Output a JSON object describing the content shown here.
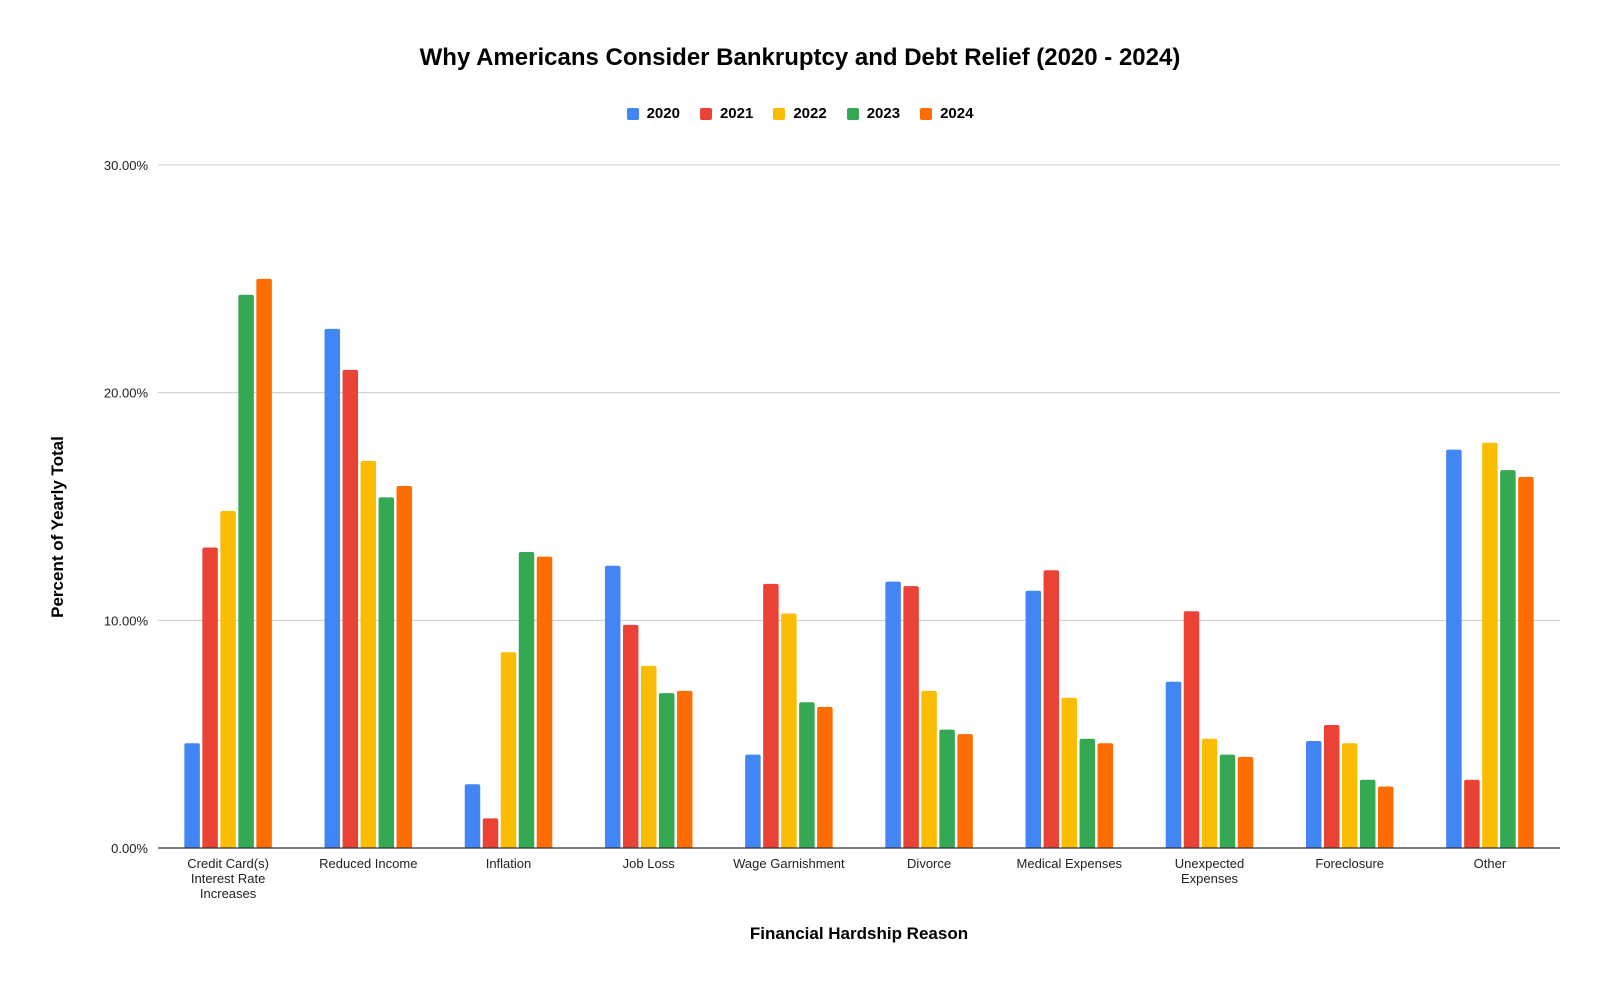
{
  "chart_data": {
    "type": "bar",
    "title": "Why Americans Consider Bankruptcy and Debt Relief (2020 - 2024)",
    "xlabel": "Financial Hardship Reason",
    "ylabel": "Percent of Yearly Total",
    "ylim": [
      0,
      30
    ],
    "yticks": [
      "0.00%",
      "10.00%",
      "20.00%",
      "30.00%"
    ],
    "grid": true,
    "legend_position": "top",
    "categories": [
      "Credit Card(s) Interest Rate Increases",
      "Reduced Income",
      "Inflation",
      "Job Loss",
      "Wage Garnishment",
      "Divorce",
      "Medical Expenses",
      "Unexpected Expenses",
      "Foreclosure",
      "Other"
    ],
    "category_label_lines": [
      [
        "Credit Card(s)",
        "Interest Rate",
        "Increases"
      ],
      [
        "Reduced Income"
      ],
      [
        "Inflation"
      ],
      [
        "Job Loss"
      ],
      [
        "Wage Garnishment"
      ],
      [
        "Divorce"
      ],
      [
        "Medical Expenses"
      ],
      [
        "Unexpected",
        "Expenses"
      ],
      [
        "Foreclosure"
      ],
      [
        "Other"
      ]
    ],
    "series": [
      {
        "name": "2020",
        "color": "#4285F4",
        "values": [
          4.6,
          22.8,
          2.8,
          12.4,
          4.1,
          11.7,
          11.3,
          7.3,
          4.7,
          17.5
        ]
      },
      {
        "name": "2021",
        "color": "#EA4335",
        "values": [
          13.2,
          21.0,
          1.3,
          9.8,
          11.6,
          11.5,
          12.2,
          10.4,
          5.4,
          3.0
        ]
      },
      {
        "name": "2022",
        "color": "#FBBC04",
        "values": [
          14.8,
          17.0,
          8.6,
          8.0,
          10.3,
          6.9,
          6.6,
          4.8,
          4.6,
          17.8
        ]
      },
      {
        "name": "2023",
        "color": "#34A853",
        "values": [
          24.3,
          15.4,
          13.0,
          6.8,
          6.4,
          5.2,
          4.8,
          4.1,
          3.0,
          16.6
        ]
      },
      {
        "name": "2024",
        "color": "#FF6D01",
        "values": [
          25.0,
          15.9,
          12.8,
          6.9,
          6.2,
          5.0,
          4.6,
          4.0,
          2.7,
          16.3
        ]
      }
    ]
  }
}
